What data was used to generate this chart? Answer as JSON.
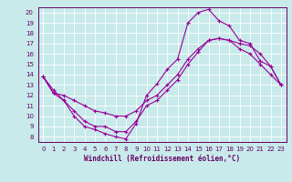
{
  "background_color": "#c8eaea",
  "line_color": "#990099",
  "xlabel": "Windchill (Refroidissement éolien,°C)",
  "xlim": [
    -0.5,
    23.5
  ],
  "ylim": [
    7.5,
    20.5
  ],
  "yticks": [
    8,
    9,
    10,
    11,
    12,
    13,
    14,
    15,
    16,
    17,
    18,
    19,
    20
  ],
  "xticks": [
    0,
    1,
    2,
    3,
    4,
    5,
    6,
    7,
    8,
    9,
    10,
    11,
    12,
    13,
    14,
    15,
    16,
    17,
    18,
    19,
    20,
    21,
    22,
    23
  ],
  "series": [
    [
      13.8,
      12.5,
      11.5,
      10.0,
      9.0,
      8.7,
      8.3,
      8.0,
      7.8,
      9.3,
      12.0,
      13.1,
      14.5,
      15.5,
      19.0,
      20.0,
      20.3,
      19.2,
      18.7,
      17.3,
      17.0,
      15.3,
      14.8,
      13.0
    ],
    [
      13.8,
      12.2,
      12.0,
      11.5,
      11.0,
      10.5,
      10.3,
      10.0,
      10.0,
      10.5,
      11.5,
      12.0,
      13.0,
      14.0,
      15.5,
      16.5,
      17.3,
      17.5,
      17.3,
      17.0,
      16.8,
      16.0,
      14.8,
      13.0
    ],
    [
      13.8,
      12.2,
      11.5,
      10.5,
      9.5,
      9.0,
      9.0,
      8.5,
      8.5,
      9.5,
      11.0,
      11.5,
      12.5,
      13.5,
      15.0,
      16.2,
      17.3,
      17.5,
      17.3,
      16.5,
      16.0,
      15.0,
      14.0,
      13.0
    ]
  ],
  "grid_color": "#ffffff",
  "font_color": "#660066",
  "tick_fontsize": 5.0,
  "xlabel_fontsize": 5.5,
  "linewidth": 0.8,
  "markersize": 2.5
}
